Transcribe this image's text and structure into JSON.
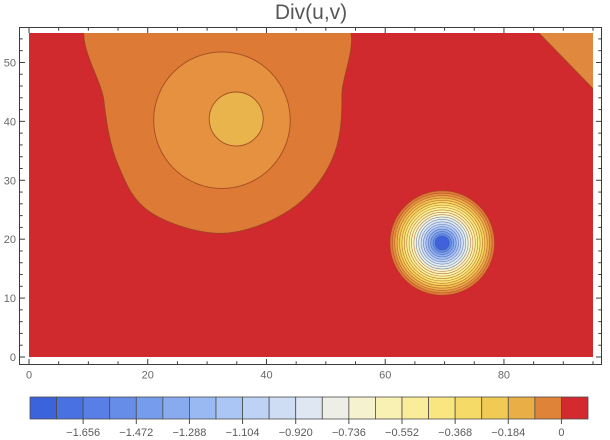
{
  "colors": {
    "background": "#ffffff",
    "plot_background": "#D02A2E",
    "frame": "#3C3C3C",
    "tick_label": "#696969",
    "legend_label": "#5A5A5A",
    "title": "#575757",
    "contour_line_warm": "#98421E",
    "contour_line_cold": "#3E4E8F"
  },
  "chart_data": {
    "type": "contour",
    "title": "Div(u,v)",
    "x_range": [
      0,
      95
    ],
    "y_range": [
      0,
      55
    ],
    "x_ticks": [
      0,
      20,
      40,
      60,
      80
    ],
    "x_minor_step": 5,
    "y_ticks": [
      0,
      10,
      20,
      30,
      40,
      50
    ],
    "y_minor_step": 2,
    "contour_step": 0.092,
    "background_level": "greater than 0",
    "features": {
      "source_blob": {
        "description": "weak positive-divergence-deficit bump, center ~(34,40), 3 contour bands, outer band clipped by top edge",
        "outer_outline": [
          [
            12.0,
            58.9
          ],
          [
            12.6,
            43.6
          ],
          [
            15.0,
            32.6
          ],
          [
            20.4,
            24.6
          ],
          [
            32.5,
            21.0
          ],
          [
            44.0,
            25.0
          ],
          [
            51.0,
            33.4
          ],
          [
            52.7,
            44.5
          ],
          [
            50.7,
            58.9
          ]
        ],
        "outer_color": "#DD7A36",
        "middle": {
          "cx": 32.5,
          "cy": 40.2,
          "r": 11.5,
          "color": "#E69140"
        },
        "inner": {
          "cx": 34.9,
          "cy": 40.4,
          "r": 4.55,
          "color": "#EAB44C"
        }
      },
      "sink_blob": {
        "description": "deep sink, ~19 tight contour rings from orange down to blue core, min ~ -1.7",
        "cx": 69.6,
        "cy": 19.35,
        "outer_r": 8.8,
        "inner_r": 1.55,
        "ring_colors": [
          "#DD7A36",
          "#E69140",
          "#EDAC49",
          "#F2C252",
          "#F6D35D",
          "#F8E06C",
          "#FAE97E",
          "#FBEE92",
          "#FBF1A7",
          "#F9F3BC",
          "#F4F3D1",
          "#ECF1E1",
          "#DFEAEF",
          "#CEDFF5",
          "#BAD0F6",
          "#A5C0F5",
          "#8FB0F2",
          "#79A0EF",
          "#638DE9"
        ],
        "center_color": "#3F62DA"
      },
      "corner_wedge": {
        "description": "orange band cut at top-right corner",
        "points": [
          [
            85.3,
            55.6
          ],
          [
            96.2,
            55.6
          ],
          [
            96.2,
            44.3
          ]
        ],
        "color": "#E0883D"
      }
    },
    "legend": {
      "tick_labels": [
        "−1.656",
        "−1.472",
        "−1.288",
        "−1.104",
        "−0.920",
        "−0.736",
        "−0.552",
        "−0.368",
        "−0.184",
        "0"
      ],
      "tick_boundary_indices": [
        2,
        4,
        6,
        8,
        10,
        12,
        14,
        16,
        18,
        20
      ],
      "segment_colors": [
        "#3B63DC",
        "#4971E1",
        "#577FE5",
        "#668EE9",
        "#769DED",
        "#88ABF0",
        "#99B9F3",
        "#ABC6F4",
        "#BDD2F5",
        "#CFDDF4",
        "#DFE7F2",
        "#EDEEE6",
        "#F5F2CF",
        "#F9F1B4",
        "#FAED99",
        "#F9E680",
        "#F6DA67",
        "#F1CA53",
        "#E9AE45",
        "#DE8338",
        "#D22A2F"
      ]
    }
  }
}
